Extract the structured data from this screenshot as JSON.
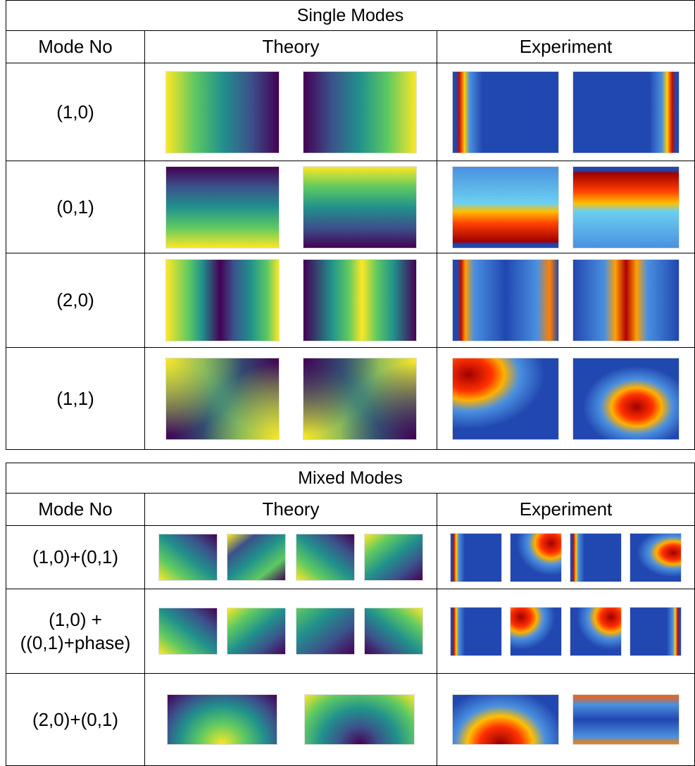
{
  "tables": [
    {
      "title": "Single Modes",
      "headers": [
        "Mode No",
        "Theory",
        "Experiment"
      ],
      "rows": [
        "(1,0)",
        "(0,1)",
        "(2,0)",
        "(1,1)"
      ]
    },
    {
      "title": "Mixed Modes",
      "headers": [
        "Mode No",
        "Theory",
        "Experiment"
      ],
      "rows": [
        "(1,0)+(0,1)",
        "(1,0) +\n((0,1)+phase)",
        "(2,0)+(0,1)"
      ]
    }
  ]
}
